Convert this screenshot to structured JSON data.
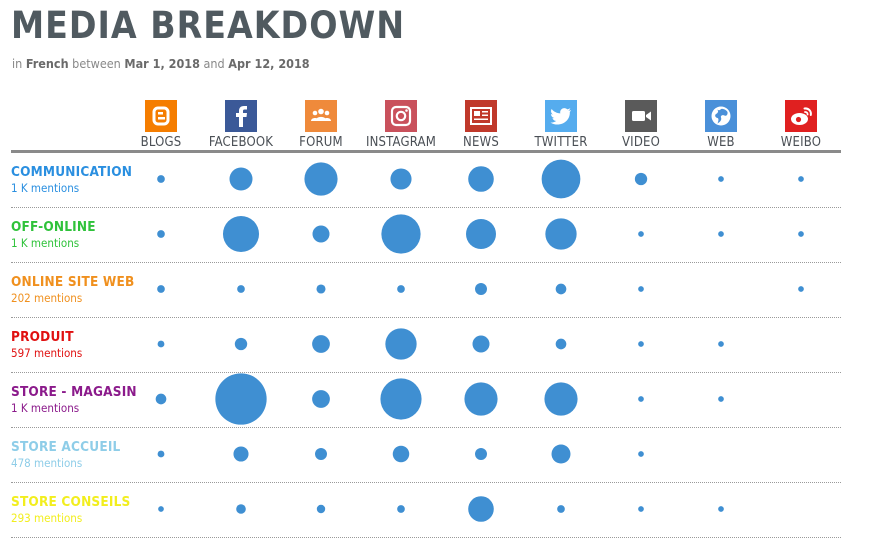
{
  "header": {
    "title": "MEDIA BREAKDOWN",
    "subtitle_prefix": "in",
    "language": "French",
    "between_word": "between",
    "start_date": "Mar 1, 2018",
    "and_word": "and",
    "end_date": "Apr 12, 2018"
  },
  "chart_data": {
    "type": "bubble-matrix",
    "columns": [
      {
        "label": "BLOGS",
        "icon": "blogger-icon",
        "color": "#f57d00"
      },
      {
        "label": "FACEBOOK",
        "icon": "facebook-icon",
        "color": "#3b5998"
      },
      {
        "label": "FORUM",
        "icon": "forum-icon",
        "color": "#ef8a3b"
      },
      {
        "label": "INSTAGRAM",
        "icon": "instagram-icon",
        "color": "#c9515c"
      },
      {
        "label": "NEWS",
        "icon": "news-icon",
        "color": "#c0392b"
      },
      {
        "label": "TWITTER",
        "icon": "twitter-icon",
        "color": "#55acee"
      },
      {
        "label": "VIDEO",
        "icon": "video-icon",
        "color": "#5a5a5a"
      },
      {
        "label": "WEB",
        "icon": "globe-icon",
        "color": "#4a90d9"
      },
      {
        "label": "WEIBO",
        "icon": "weibo-icon",
        "color": "#e02020"
      }
    ],
    "rows": [
      {
        "name": "COMMUNICATION",
        "mentions": "1 K mentions",
        "color": "#2a8fe0",
        "values": [
          3,
          55,
          125,
          45,
          70,
          175,
          12,
          1,
          1
        ]
      },
      {
        "name": "OFF-ONLINE",
        "mentions": "1 K mentions",
        "color": "#2fc23a",
        "values": [
          3,
          150,
          27,
          180,
          100,
          110,
          1,
          1,
          1
        ]
      },
      {
        "name": "ONLINE SITE WEB",
        "mentions": "202 mentions",
        "color": "#f0901e",
        "values": [
          3,
          3,
          5,
          3,
          11,
          8,
          1,
          0,
          1
        ]
      },
      {
        "name": "PRODUIT",
        "mentions": "597 mentions",
        "color": "#e01010",
        "values": [
          2,
          12,
          30,
          110,
          27,
          8,
          1,
          1,
          0
        ]
      },
      {
        "name": "STORE - MAGASIN",
        "mentions": "1 K mentions",
        "color": "#8b1a8b",
        "values": [
          8,
          320,
          30,
          200,
          125,
          125,
          1,
          1,
          0
        ]
      },
      {
        "name": "STORE ACCUEIL",
        "mentions": "478 mentions",
        "color": "#8ecde8",
        "values": [
          2,
          20,
          11,
          25,
          11,
          35,
          1,
          0,
          0
        ]
      },
      {
        "name": "STORE CONSEILS",
        "mentions": "293 mentions",
        "color": "#f2ee1e",
        "values": [
          1,
          6,
          4,
          3,
          70,
          3,
          1,
          1,
          0
        ]
      }
    ],
    "bubble_color": "#3f8fd2"
  }
}
